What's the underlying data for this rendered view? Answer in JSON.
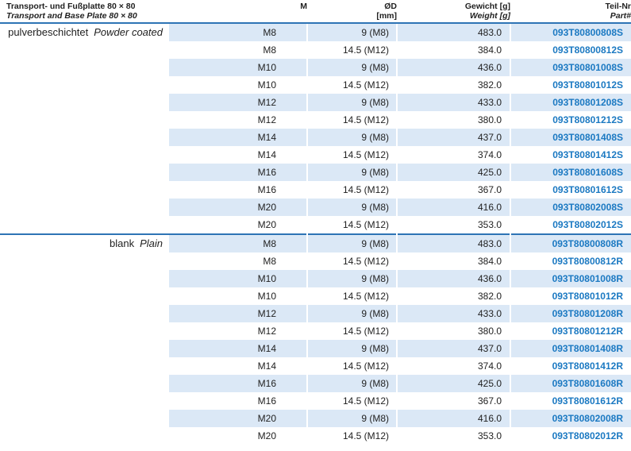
{
  "table": {
    "title": {
      "de": "Transport- und Fußplatte 80 × 80",
      "en": "Transport and Base Plate 80 × 80"
    },
    "columns": {
      "m": {
        "line1": "M",
        "line2": ""
      },
      "od": {
        "line1": "ØD",
        "line2": "[mm]"
      },
      "weight": {
        "line1": "Gewicht [g]",
        "line2": "Weight [g]"
      },
      "part": {
        "line1": "Teil-Nr",
        "line2": "Part#"
      }
    },
    "sections": [
      {
        "label_de": "pulverbeschichtet",
        "label_en": "Powder coated",
        "rows": [
          {
            "m": "M8",
            "od": "9 (M8)",
            "weight": "483.0",
            "part": "093T80800808S"
          },
          {
            "m": "M8",
            "od": "14.5 (M12)",
            "weight": "384.0",
            "part": "093T80800812S"
          },
          {
            "m": "M10",
            "od": "9 (M8)",
            "weight": "436.0",
            "part": "093T80801008S"
          },
          {
            "m": "M10",
            "od": "14.5 (M12)",
            "weight": "382.0",
            "part": "093T80801012S"
          },
          {
            "m": "M12",
            "od": "9 (M8)",
            "weight": "433.0",
            "part": "093T80801208S"
          },
          {
            "m": "M12",
            "od": "14.5 (M12)",
            "weight": "380.0",
            "part": "093T80801212S"
          },
          {
            "m": "M14",
            "od": "9 (M8)",
            "weight": "437.0",
            "part": "093T80801408S"
          },
          {
            "m": "M14",
            "od": "14.5 (M12)",
            "weight": "374.0",
            "part": "093T80801412S"
          },
          {
            "m": "M16",
            "od": "9 (M8)",
            "weight": "425.0",
            "part": "093T80801608S"
          },
          {
            "m": "M16",
            "od": "14.5 (M12)",
            "weight": "367.0",
            "part": "093T80801612S"
          },
          {
            "m": "M20",
            "od": "9 (M8)",
            "weight": "416.0",
            "part": "093T80802008S"
          },
          {
            "m": "M20",
            "od": "14.5 (M12)",
            "weight": "353.0",
            "part": "093T80802012S"
          }
        ]
      },
      {
        "label_de": "blank",
        "label_en": "Plain",
        "rows": [
          {
            "m": "M8",
            "od": "9 (M8)",
            "weight": "483.0",
            "part": "093T80800808R"
          },
          {
            "m": "M8",
            "od": "14.5 (M12)",
            "weight": "384.0",
            "part": "093T80800812R"
          },
          {
            "m": "M10",
            "od": "9 (M8)",
            "weight": "436.0",
            "part": "093T80801008R"
          },
          {
            "m": "M10",
            "od": "14.5 (M12)",
            "weight": "382.0",
            "part": "093T80801012R"
          },
          {
            "m": "M12",
            "od": "9 (M8)",
            "weight": "433.0",
            "part": "093T80801208R"
          },
          {
            "m": "M12",
            "od": "14.5 (M12)",
            "weight": "380.0",
            "part": "093T80801212R"
          },
          {
            "m": "M14",
            "od": "9 (M8)",
            "weight": "437.0",
            "part": "093T80801408R"
          },
          {
            "m": "M14",
            "od": "14.5 (M12)",
            "weight": "374.0",
            "part": "093T80801412R"
          },
          {
            "m": "M16",
            "od": "9 (M8)",
            "weight": "425.0",
            "part": "093T80801608R"
          },
          {
            "m": "M16",
            "od": "14.5 (M12)",
            "weight": "367.0",
            "part": "093T80801612R"
          },
          {
            "m": "M20",
            "od": "9 (M8)",
            "weight": "416.0",
            "part": "093T80802008R"
          },
          {
            "m": "M20",
            "od": "14.5 (M12)",
            "weight": "353.0",
            "part": "093T80802012R"
          }
        ]
      }
    ]
  },
  "colors": {
    "line-blue": "#2e74b5",
    "stripe-blue": "#dbe8f6",
    "part-blue": "#1b79c2",
    "text-dark": "#1f1f1f"
  }
}
